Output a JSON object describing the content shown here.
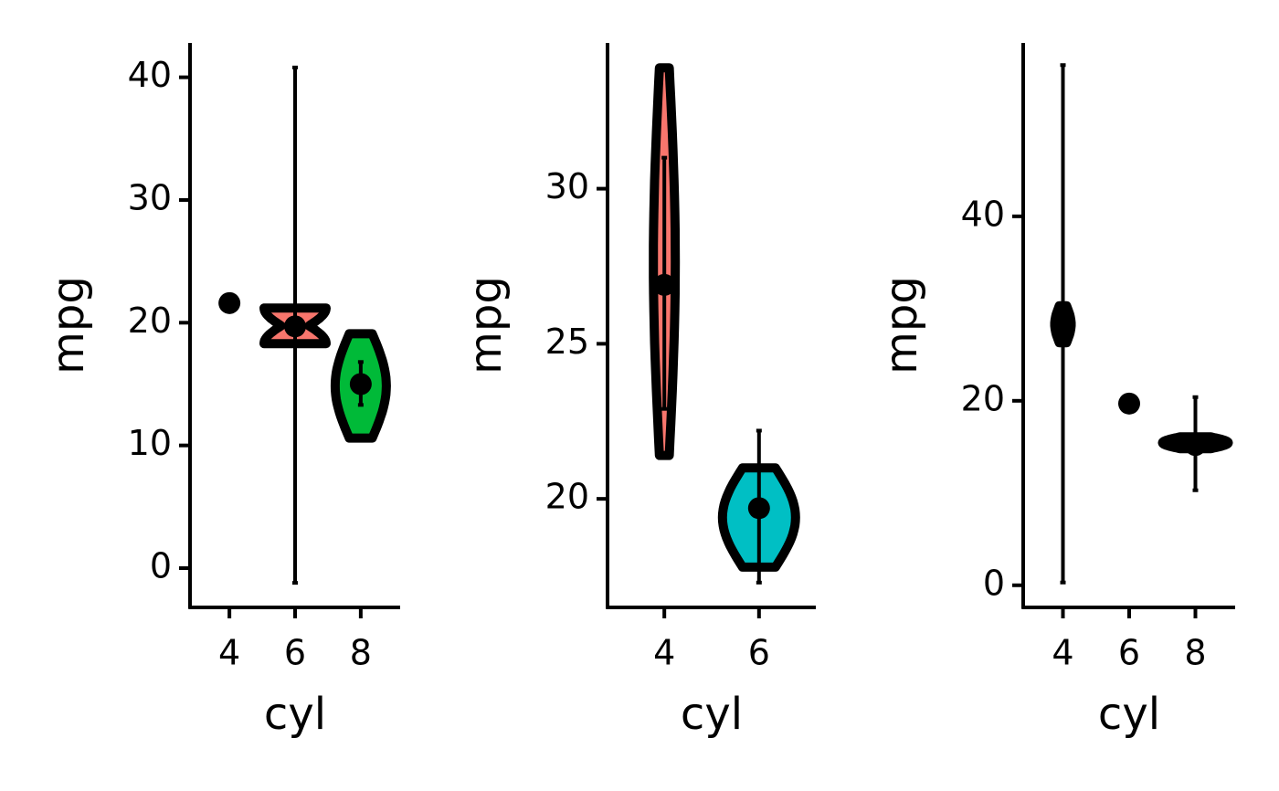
{
  "chart_data": [
    {
      "type": "violin",
      "xlabel": "cyl",
      "ylabel": "mpg",
      "categories": [
        "4",
        "6",
        "8"
      ],
      "values": [
        21.6,
        19.7,
        15.0
      ],
      "error_low": [
        null,
        -1.2,
        13.3
      ],
      "error_high": [
        null,
        40.8,
        16.8
      ],
      "violin_min": [
        null,
        18.3,
        10.6
      ],
      "violin_max": [
        null,
        21.2,
        19.1
      ],
      "colors": [
        null,
        "#F8766D",
        "#00BA38"
      ],
      "ylim": [
        -3.2,
        42.8
      ],
      "yticks": [
        0,
        10,
        20,
        30,
        40
      ]
    },
    {
      "type": "violin",
      "xlabel": "cyl",
      "ylabel": "mpg",
      "categories": [
        "4",
        "6"
      ],
      "values": [
        26.9,
        19.7
      ],
      "error_low": [
        22.9,
        17.3
      ],
      "error_high": [
        31.0,
        22.2
      ],
      "violin_min": [
        21.4,
        17.8
      ],
      "violin_max": [
        33.9,
        21.0
      ],
      "colors": [
        "#F8766D",
        "#00BFC4"
      ],
      "ylim": [
        16.5,
        34.7
      ],
      "yticks": [
        20,
        25,
        30
      ]
    },
    {
      "type": "violin",
      "xlabel": "cyl",
      "ylabel": "mpg",
      "categories": [
        "4",
        "6",
        "8"
      ],
      "values": [
        28.3,
        19.7,
        15.2
      ],
      "error_low": [
        0.3,
        null,
        10.3
      ],
      "error_high": [
        56.4,
        null,
        20.4
      ],
      "violin_min": [
        26.3,
        null,
        14.8
      ],
      "violin_max": [
        30.3,
        null,
        16.1
      ],
      "colors": [
        "#000000",
        null,
        "#000000"
      ],
      "ylim": [
        -2.4,
        58.8
      ],
      "yticks": [
        0,
        20,
        40
      ]
    }
  ]
}
